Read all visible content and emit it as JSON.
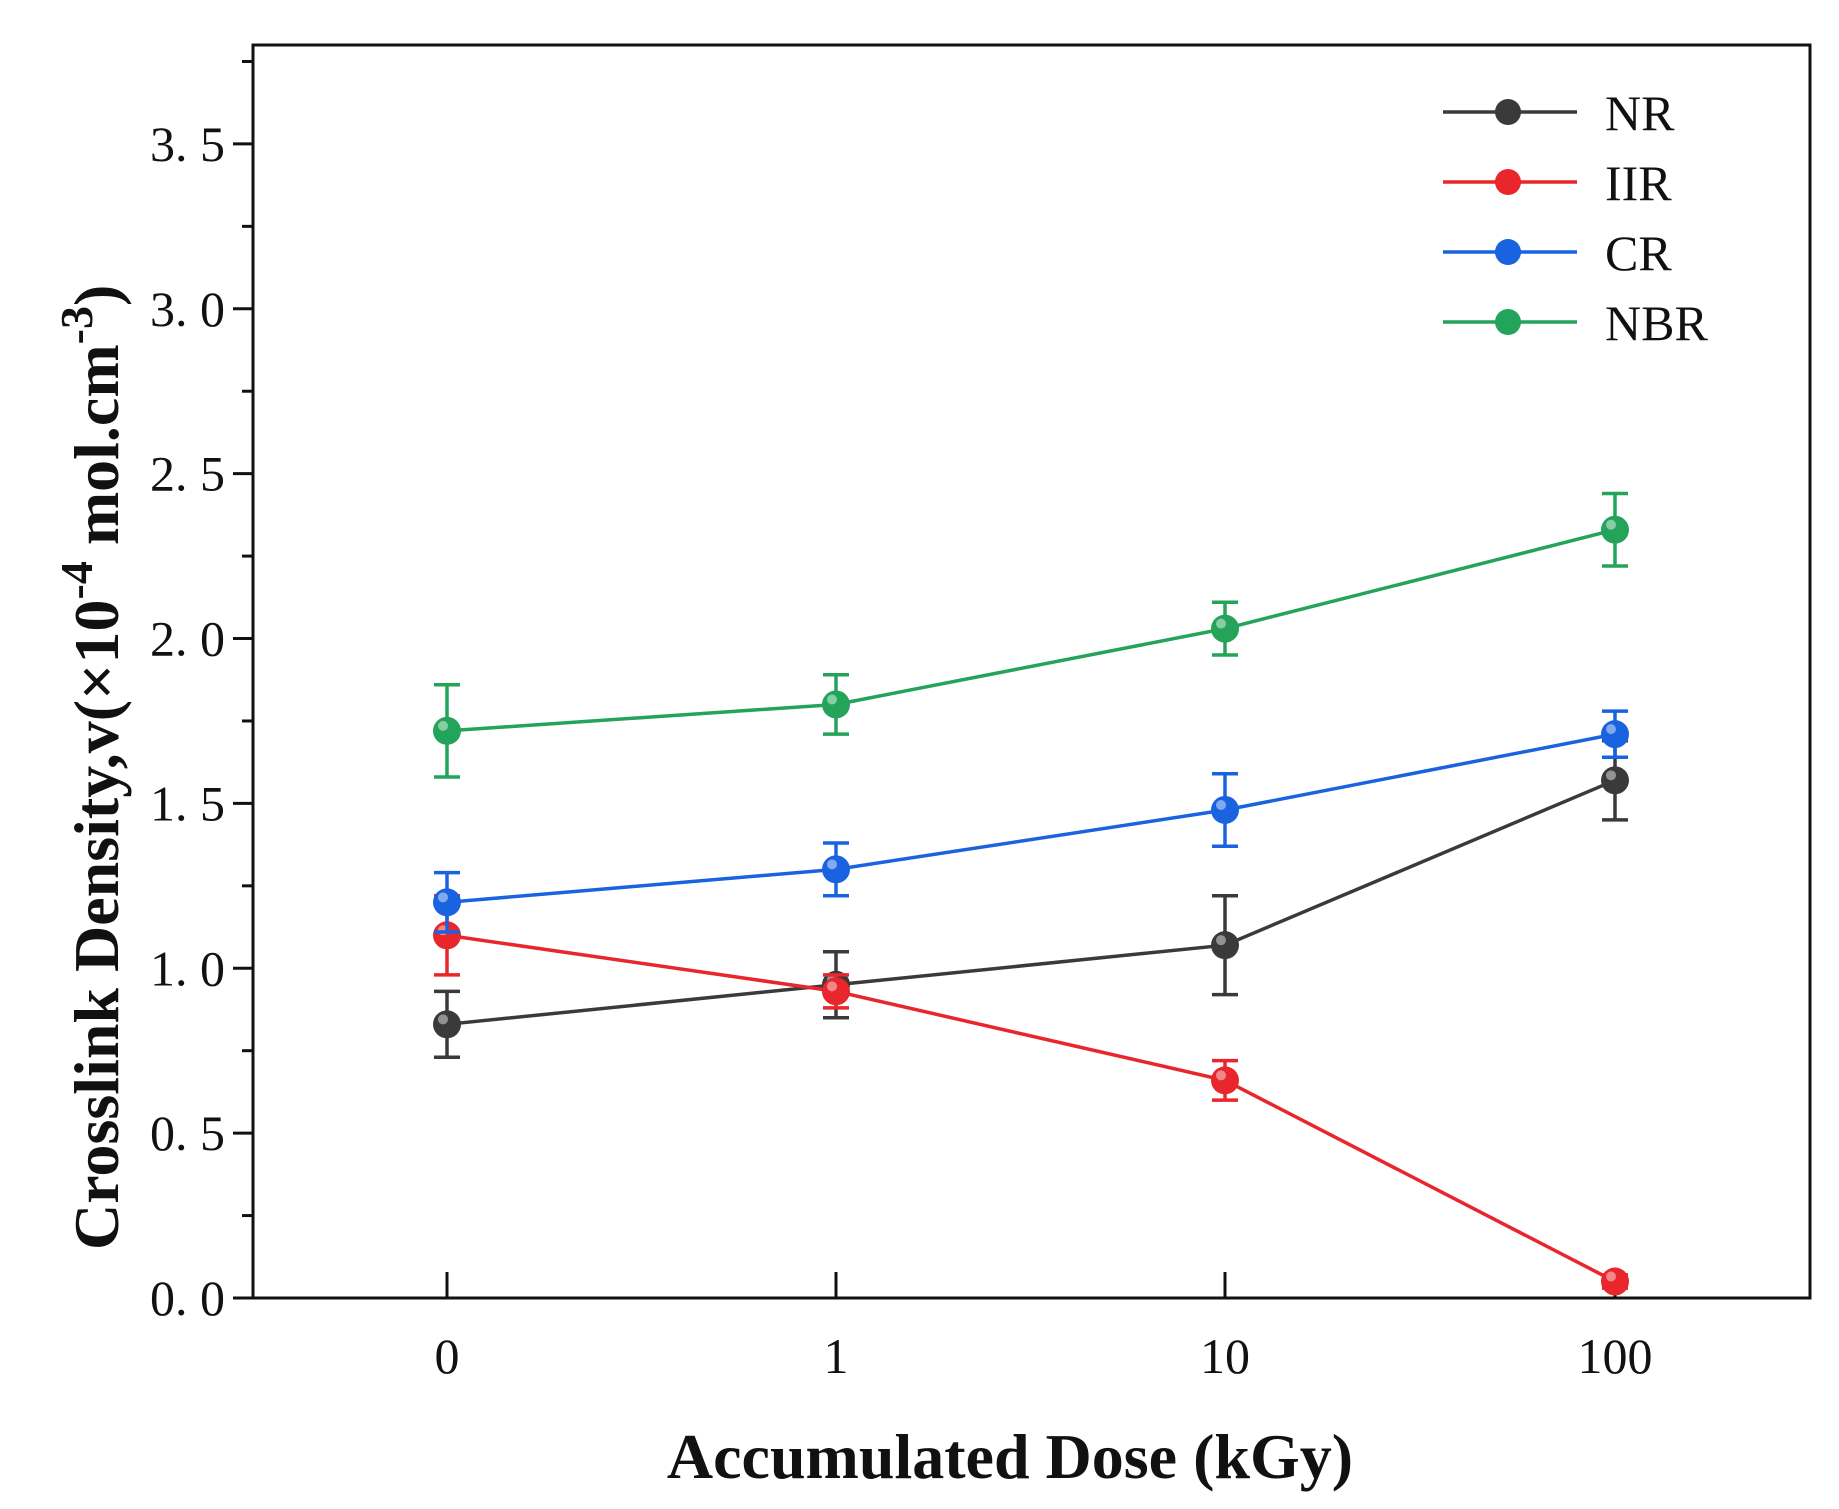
{
  "chart_data": {
    "type": "line",
    "title": "",
    "xlabel": "Accumulated Dose (kGy)",
    "ylabel_parts": [
      "Crosslink Density,v(×10",
      "-4",
      " mol.cm",
      "-3",
      ")"
    ],
    "categories": [
      "0",
      "1",
      "10",
      "100"
    ],
    "ylim": [
      0,
      3.8
    ],
    "yticks": [
      0.0,
      0.5,
      1.0,
      1.5,
      2.0,
      2.5,
      3.0,
      3.5
    ],
    "ytick_labels": [
      "0. 0",
      "0. 5",
      "1. 0",
      "1. 5",
      "2. 0",
      "2. 5",
      "3. 0",
      "3. 5"
    ],
    "grid": false,
    "legend_position": "top-right",
    "series": [
      {
        "name": "NR",
        "color": "#3a3a3a",
        "values": [
          0.83,
          0.95,
          1.07,
          1.57
        ],
        "errors": [
          0.1,
          0.1,
          0.15,
          0.12
        ]
      },
      {
        "name": "IIR",
        "color": "#e8262b",
        "values": [
          1.1,
          0.93,
          0.66,
          0.05
        ],
        "errors": [
          0.12,
          0.05,
          0.06,
          0.02
        ]
      },
      {
        "name": "CR",
        "color": "#1a63e0",
        "values": [
          1.2,
          1.3,
          1.48,
          1.71
        ],
        "errors": [
          0.09,
          0.08,
          0.11,
          0.07
        ]
      },
      {
        "name": "NBR",
        "color": "#24a35a",
        "values": [
          1.72,
          1.8,
          2.03,
          2.33
        ],
        "errors": [
          0.14,
          0.09,
          0.08,
          0.11
        ]
      }
    ]
  }
}
